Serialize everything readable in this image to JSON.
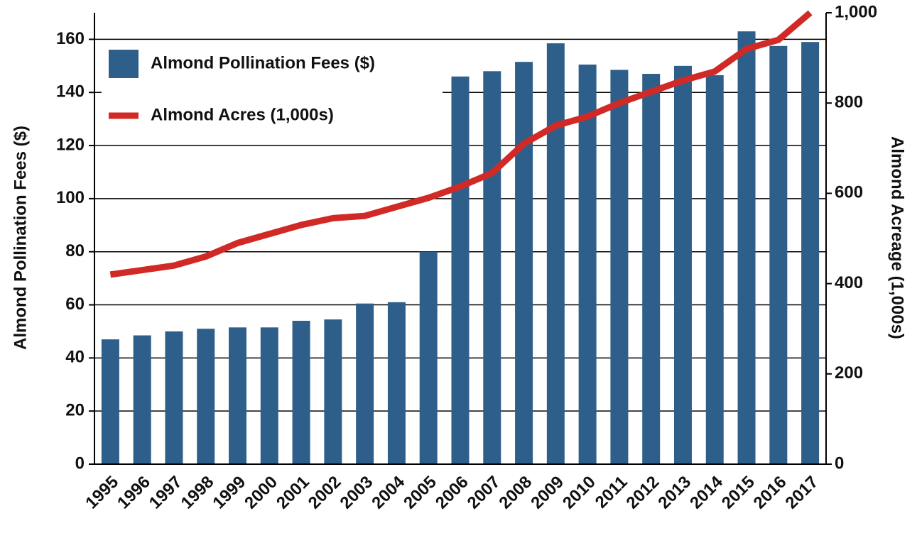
{
  "chart_data": {
    "type": "bar-line",
    "categories": [
      "1995",
      "1996",
      "1997",
      "1998",
      "1999",
      "2000",
      "2001",
      "2002",
      "2003",
      "2004",
      "2005",
      "2006",
      "2007",
      "2008",
      "2009",
      "2010",
      "2011",
      "2012",
      "2013",
      "2014",
      "2015",
      "2016",
      "2017"
    ],
    "series": [
      {
        "name": "Almond Pollination Fees ($)",
        "color": "#2e5f8a",
        "type": "bar",
        "values": [
          47,
          48.5,
          50,
          51,
          51.5,
          51.5,
          54,
          54.5,
          60.5,
          61,
          80,
          146,
          148,
          151.5,
          158.5,
          150.5,
          148.5,
          147,
          150,
          146.5,
          163,
          157.5,
          159
        ]
      },
      {
        "name": "Almond Acres (1,000s)",
        "color": "#d12a26",
        "type": "line",
        "axis": "y2",
        "values": [
          420,
          430,
          440,
          460,
          490,
          510,
          530,
          545,
          550,
          570,
          590,
          615,
          645,
          710,
          750,
          770,
          800,
          825,
          850,
          870,
          920,
          940,
          1000
        ]
      }
    ],
    "ylabel": "Almond Pollination Fees ($)",
    "y2label": "Almond Acreage (1,000s)",
    "ylim": [
      0,
      170
    ],
    "yticks": [
      0,
      20,
      40,
      60,
      80,
      100,
      120,
      140,
      160
    ],
    "y2lim": [
      0,
      1000
    ],
    "y2ticks": [
      0,
      200,
      400,
      600,
      800,
      {
        "value": 1000,
        "label": "1,000"
      }
    ],
    "grid": true,
    "legend": "upper left"
  }
}
